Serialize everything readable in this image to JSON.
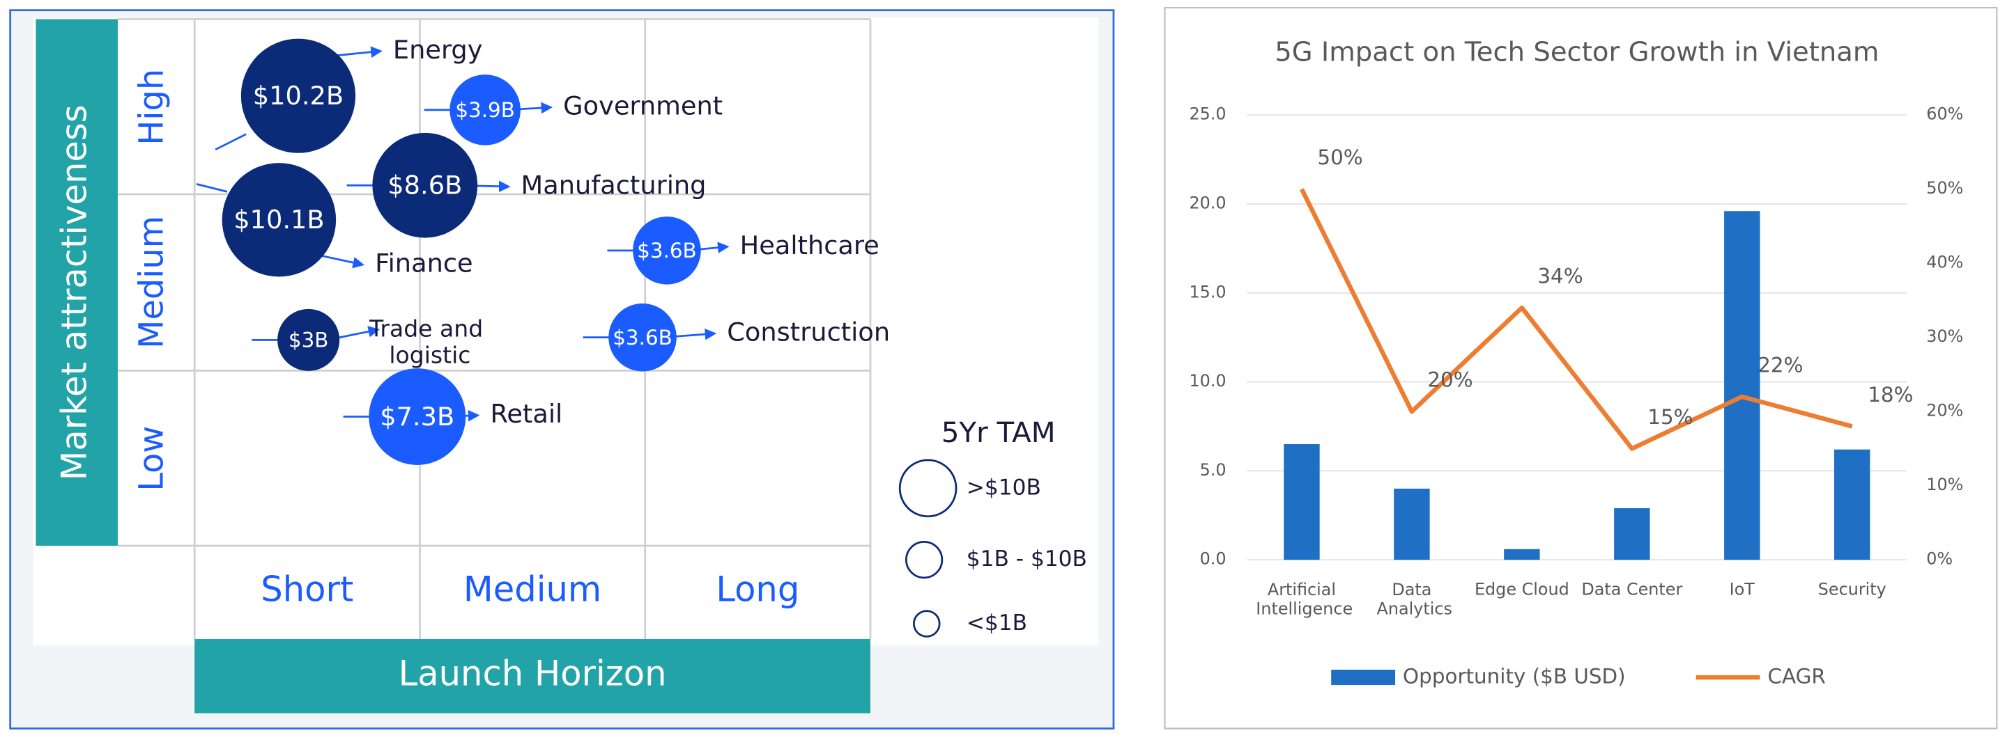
{
  "chart_data": [
    {
      "type": "bubble",
      "y_label": "Market attractiveness",
      "x_label": "Launch Horizon",
      "y_categories": [
        "High",
        "Medium",
        "Low"
      ],
      "x_categories": [
        "Short",
        "Medium",
        "Long"
      ],
      "bubbles": {
        "names": [
          "Energy",
          "Government",
          "Manufacturing",
          "Finance",
          "Healthcare",
          "Trade and logistic",
          "Construction",
          "Retail"
        ],
        "values": [
          10.2,
          3.9,
          8.6,
          10.1,
          3.6,
          3,
          3.6,
          7.3
        ],
        "value_labels": [
          "$10.2B",
          "$3.9B",
          "$8.6B",
          "$10.1B",
          "$3.6B",
          "$3B",
          "$3.6B",
          "$7.3B"
        ],
        "x": [
          "Short",
          "Medium",
          "Medium",
          "Short",
          "Long",
          "Short",
          "Long",
          "Medium"
        ],
        "y": [
          "High",
          "High",
          "High",
          "Medium",
          "Medium",
          "Medium",
          "Medium",
          "Low"
        ],
        "colors": [
          "#0b2a78",
          "#1a5cff",
          "#0b2a78",
          "#0b2a78",
          "#1a5cff",
          "#0b2a78",
          "#1a5cff",
          "#1a5cff"
        ]
      },
      "legend_title": "5Yr TAM",
      "legend": [
        ">$10B",
        "$1B - $10B",
        "<$1B"
      ]
    },
    {
      "type": "combo",
      "title": "5G Impact on Tech Sector Growth in Vietnam",
      "categories": [
        "Artificial Intelligence",
        "Data Analytics",
        "Edge Cloud",
        "Data Center",
        "IoT",
        "Security"
      ],
      "series": [
        {
          "name": "Opportunity ($B USD)",
          "color": "#1f6fc4",
          "kind": "bar",
          "values": [
            6.5,
            4.0,
            0.6,
            2.9,
            19.6,
            6.2
          ]
        },
        {
          "name": "CAGR",
          "color": "#ed7d31",
          "kind": "line",
          "axis": "y2",
          "values": [
            50,
            20,
            34,
            15,
            22,
            18
          ],
          "value_labels": [
            "50%",
            "20%",
            "34%",
            "15%",
            "22%",
            "18%"
          ]
        }
      ],
      "ylim": [
        0,
        25
      ],
      "yticks": [
        {
          "value": 0,
          "label": "0.0"
        },
        {
          "value": 5,
          "label": "5.0"
        },
        {
          "value": 10,
          "label": "10.0"
        },
        {
          "value": 15,
          "label": "15.0"
        },
        {
          "value": 20,
          "label": "20.0"
        },
        {
          "value": 25,
          "label": "25.0"
        }
      ],
      "y2lim": [
        0,
        60
      ],
      "y2ticks": [
        {
          "value": 0,
          "label": "0%"
        },
        {
          "value": 10,
          "label": "10%"
        },
        {
          "value": 20,
          "label": "20%"
        },
        {
          "value": 30,
          "label": "30%"
        },
        {
          "value": 40,
          "label": "40%"
        },
        {
          "value": 50,
          "label": "50%"
        },
        {
          "value": 60,
          "label": "60%"
        }
      ],
      "grid": true,
      "legend": "bottom"
    }
  ]
}
